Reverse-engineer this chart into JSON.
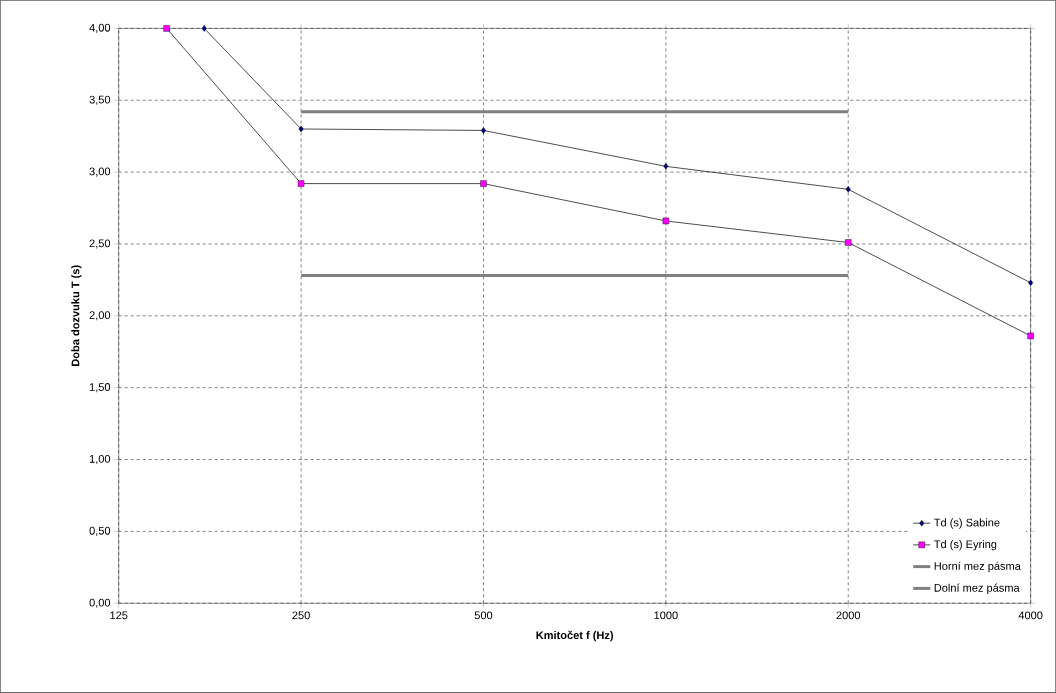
{
  "chart_data": {
    "type": "line",
    "xlabel": "Kmitočet f (Hz)",
    "ylabel": "Doba dozvuku T (s)",
    "log": "x",
    "xlim": [
      125,
      4000
    ],
    "xticks": [
      125,
      250,
      500,
      1000,
      2000,
      4000
    ],
    "ylim": [
      0,
      4
    ],
    "yticks": [
      {
        "value": 0,
        "label": "0,00"
      },
      {
        "value": 0.5,
        "label": "0,50"
      },
      {
        "value": 1,
        "label": "1,00"
      },
      {
        "value": 1.5,
        "label": "1,50"
      },
      {
        "value": 2,
        "label": "2,00"
      },
      {
        "value": 2.5,
        "label": "2,50"
      },
      {
        "value": 3,
        "label": "3,00"
      },
      {
        "value": 3.5,
        "label": "3,50"
      },
      {
        "value": 4,
        "label": "4,00"
      }
    ],
    "grid": true,
    "legend": "bottom right",
    "series": [
      {
        "name": "Td (s) Sabine",
        "color": "#000080",
        "marker": "diamond",
        "x": [
          173,
          250,
          500,
          1000,
          2000,
          4000
        ],
        "values": [
          4.0,
          3.3,
          3.29,
          3.04,
          2.88,
          2.23
        ]
      },
      {
        "name": "Td (s) Eyring",
        "color": "#ff00ff",
        "marker": "square",
        "x": [
          150,
          250,
          500,
          1000,
          2000,
          4000
        ],
        "values": [
          4.0,
          2.92,
          2.92,
          2.66,
          2.51,
          1.86
        ]
      },
      {
        "name": "Horní mez pásma",
        "color": "#808080",
        "marker": "none",
        "x": [
          250,
          2000
        ],
        "values": [
          3.42,
          3.42
        ]
      },
      {
        "name": "Dolní mez pásma",
        "color": "#808080",
        "marker": "none",
        "x": [
          250,
          2000
        ],
        "values": [
          2.28,
          2.28
        ]
      }
    ]
  }
}
